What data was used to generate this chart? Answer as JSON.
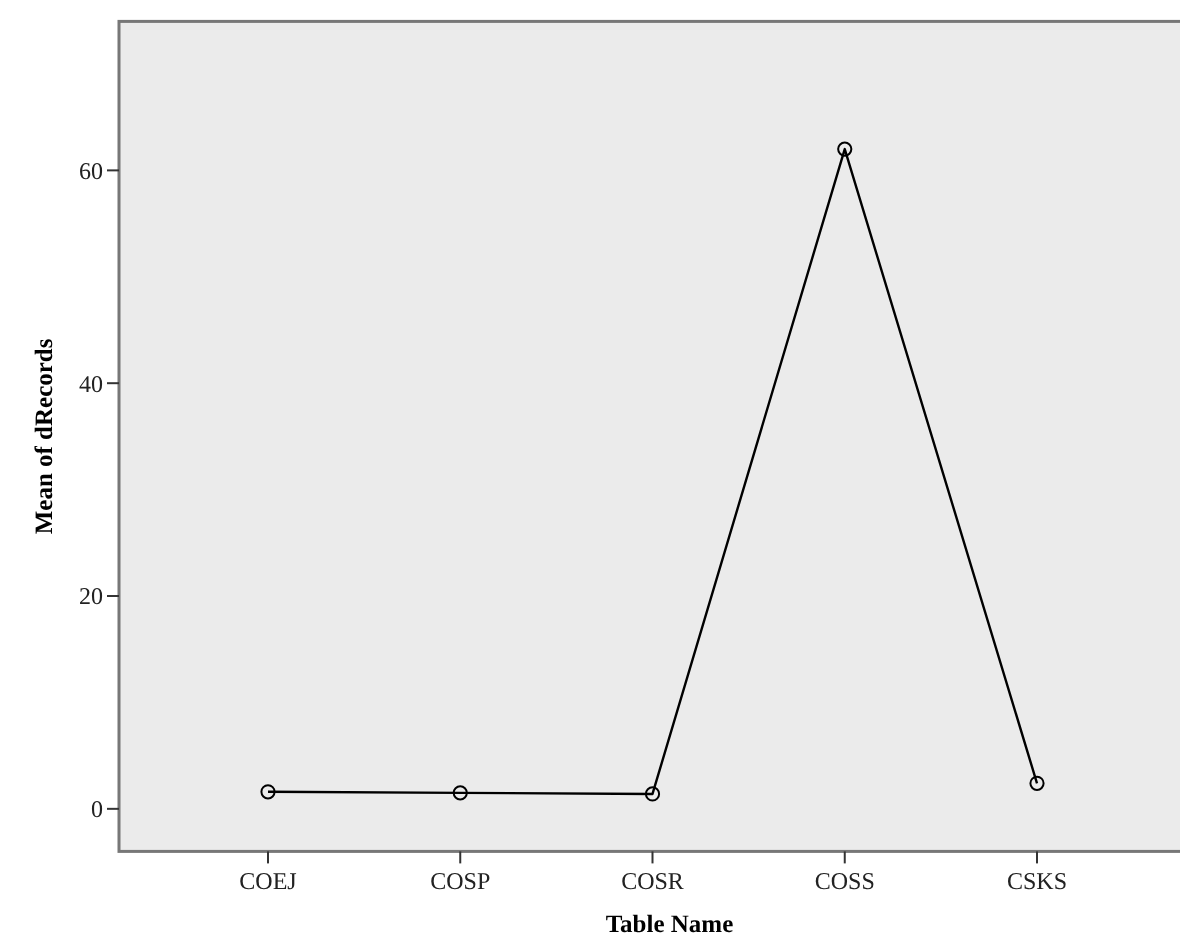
{
  "chart_data": {
    "type": "line",
    "xlabel": "Table Name",
    "ylabel": "Mean of dRecords",
    "categories": [
      "COEJ",
      "COSP",
      "COSR",
      "COSS",
      "CSKS"
    ],
    "series": [
      {
        "color": "#000000",
        "values": [
          1.6,
          1.5,
          1.4,
          62.0,
          2.4
        ]
      }
    ],
    "ylim": [
      -4,
      74
    ],
    "yticks": [
      0,
      20,
      40,
      60
    ],
    "grid": false,
    "marker": "circle",
    "line_style": "solid"
  }
}
